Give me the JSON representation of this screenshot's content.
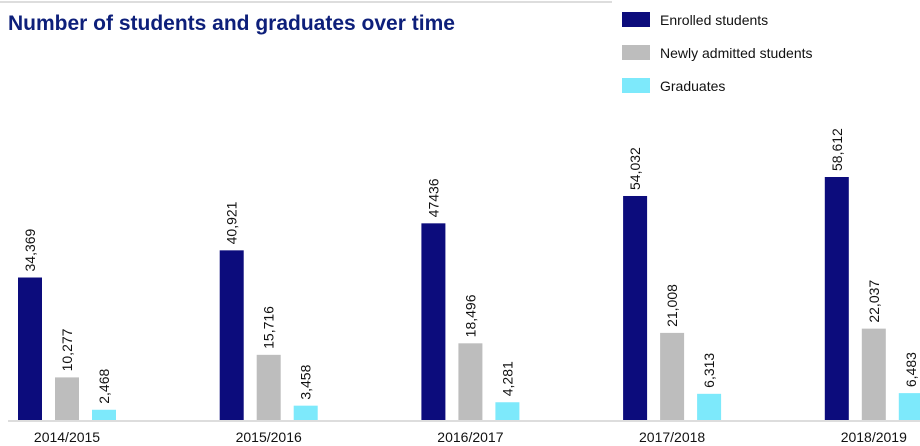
{
  "chart_data": {
    "type": "bar",
    "title": "Number of students and graduates over time",
    "categories": [
      "2014/2015",
      "2015/2016",
      "2016/2017",
      "2017/2018",
      "2018/2019"
    ],
    "series": [
      {
        "name": "Enrolled students",
        "color": "#0c0c7c",
        "values": [
          34369,
          40921,
          47436,
          54032,
          58612
        ],
        "value_labels": [
          "34,369",
          "40,921",
          "47436",
          "54,032",
          "58,612"
        ]
      },
      {
        "name": "Newly admitted students",
        "color": "#bdbdbd",
        "values": [
          10277,
          15716,
          18496,
          21008,
          22037
        ],
        "value_labels": [
          "10,277",
          "15,716",
          "18,496",
          "21,008",
          "22,037"
        ]
      },
      {
        "name": "Graduates",
        "color": "#7de9fb",
        "values": [
          2468,
          3458,
          4281,
          6313,
          6483
        ],
        "value_labels": [
          "2,468",
          "3,458",
          "4,281",
          "6,313",
          "6,483"
        ]
      }
    ],
    "legend": "top-right"
  }
}
